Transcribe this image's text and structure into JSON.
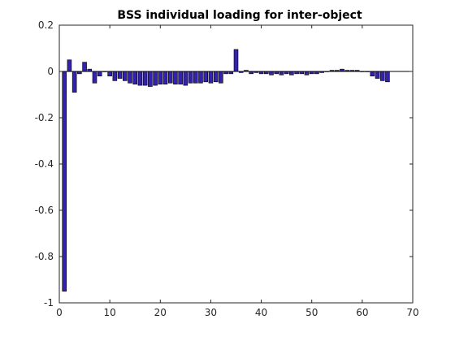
{
  "chart_data": {
    "type": "bar",
    "title": "BSS individual loading for inter-object",
    "xlabel": "",
    "ylabel": "",
    "xlim": [
      0,
      70
    ],
    "ylim": [
      -1,
      0.2
    ],
    "xticks": [
      0,
      10,
      20,
      30,
      40,
      50,
      60,
      70
    ],
    "yticks": [
      0.2,
      0,
      -0.2,
      -0.4,
      -0.6,
      -0.8,
      -1
    ],
    "ytick_labels": [
      "0.2",
      "0",
      "-0.2",
      "-0.4",
      "-0.6",
      "-0.8",
      "-1"
    ],
    "grid": false,
    "bar_color": "#3322aa",
    "x": [
      1,
      2,
      3,
      4,
      5,
      6,
      7,
      8,
      9,
      10,
      11,
      12,
      13,
      14,
      15,
      16,
      17,
      18,
      19,
      20,
      21,
      22,
      23,
      24,
      25,
      26,
      27,
      28,
      29,
      30,
      31,
      32,
      33,
      34,
      35,
      36,
      37,
      38,
      39,
      40,
      41,
      42,
      43,
      44,
      45,
      46,
      47,
      48,
      49,
      50,
      51,
      52,
      53,
      54,
      55,
      56,
      57,
      58,
      59,
      60,
      61,
      62,
      63,
      64,
      65
    ],
    "values": [
      -0.95,
      0.05,
      -0.09,
      -0.01,
      0.04,
      0.01,
      -0.05,
      -0.02,
      0.0,
      -0.02,
      -0.04,
      -0.03,
      -0.04,
      -0.05,
      -0.055,
      -0.06,
      -0.06,
      -0.065,
      -0.06,
      -0.055,
      -0.055,
      -0.05,
      -0.055,
      -0.055,
      -0.06,
      -0.05,
      -0.05,
      -0.05,
      -0.045,
      -0.05,
      -0.045,
      -0.05,
      -0.01,
      -0.01,
      0.095,
      -0.005,
      0.005,
      -0.01,
      -0.005,
      -0.01,
      -0.01,
      -0.015,
      -0.01,
      -0.015,
      -0.01,
      -0.015,
      -0.01,
      -0.01,
      -0.015,
      -0.01,
      -0.01,
      -0.005,
      0.0,
      0.005,
      0.005,
      0.01,
      0.005,
      0.005,
      0.005,
      0.0,
      0.0,
      -0.02,
      -0.03,
      -0.04,
      -0.045
    ]
  }
}
